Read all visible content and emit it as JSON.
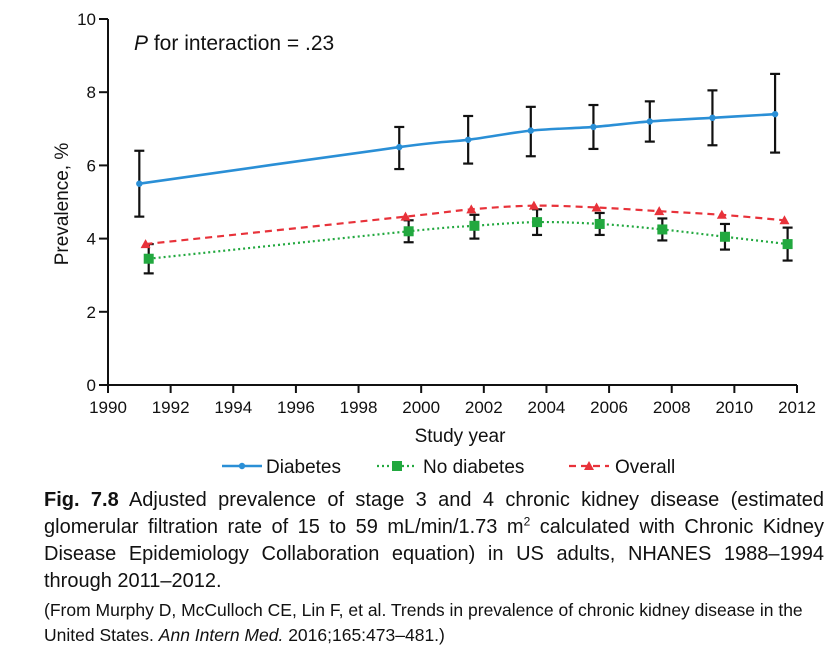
{
  "chart_data": {
    "type": "line",
    "annotation": {
      "italic": "P",
      "text": " for interaction = .23"
    },
    "xlabel": "Study year",
    "ylabel": "Prevalence, %",
    "xlim": [
      1990,
      2012
    ],
    "ylim": [
      0,
      10
    ],
    "xticks": [
      1990,
      1992,
      1994,
      1996,
      1998,
      2000,
      2002,
      2004,
      2006,
      2008,
      2010,
      2012
    ],
    "yticks": [
      0,
      2,
      4,
      6,
      8,
      10
    ],
    "grid": false,
    "legend_position": "bottom",
    "series": [
      {
        "name": "Diabetes",
        "color": "#2a8fd6",
        "line_style": "solid",
        "marker": "circle",
        "x": [
          1991.0,
          1999.3,
          2001.5,
          2003.5,
          2005.5,
          2007.3,
          2009.3,
          2011.3
        ],
        "y": [
          5.5,
          6.5,
          6.7,
          6.95,
          7.05,
          7.2,
          7.3,
          7.4
        ],
        "err_low": [
          4.6,
          5.9,
          6.05,
          6.25,
          6.45,
          6.65,
          6.55,
          6.35
        ],
        "err_high": [
          6.4,
          7.05,
          7.35,
          7.6,
          7.65,
          7.75,
          8.05,
          8.5
        ]
      },
      {
        "name": "No diabetes",
        "color": "#22a83f",
        "line_style": "dotted",
        "marker": "square",
        "x": [
          1991.3,
          1999.6,
          2001.7,
          2003.7,
          2005.7,
          2007.7,
          2009.7,
          2011.7
        ],
        "y": [
          3.45,
          4.2,
          4.35,
          4.45,
          4.4,
          4.25,
          4.05,
          3.85
        ],
        "err_low": [
          3.05,
          3.9,
          4.0,
          4.1,
          4.1,
          3.95,
          3.7,
          3.4
        ],
        "err_high": [
          3.85,
          4.5,
          4.65,
          4.8,
          4.7,
          4.55,
          4.4,
          4.3
        ]
      },
      {
        "name": "Overall",
        "color": "#e8323a",
        "line_style": "dashed",
        "marker": "triangle",
        "x": [
          1991.2,
          1999.5,
          2001.6,
          2003.6,
          2005.6,
          2007.6,
          2009.6,
          2011.6
        ],
        "y": [
          3.85,
          4.6,
          4.8,
          4.9,
          4.85,
          4.75,
          4.65,
          4.5
        ],
        "err_low": null,
        "err_high": null
      }
    ]
  },
  "caption": {
    "fig_label": "Fig. 7.8",
    "text_before_sup": " Adjusted prevalence of stage 3 and 4 chronic kidney disease (estimated glomerular filtration rate of 15 to 59 mL/min/1.73 m",
    "sup": "2",
    "text_after_sup": " calculated with Chronic Kidney Disease Epidemiology Collaboration equation) in US adults, NHANES 1988–1994 through 2011–2012.",
    "source_before": "(From Murphy D, McCulloch CE, Lin F, et al. Trends in prevalence of chronic kidney disease in the United States. ",
    "source_journal": "Ann Intern Med.",
    "source_after": " 2016;165:473–481.)"
  }
}
